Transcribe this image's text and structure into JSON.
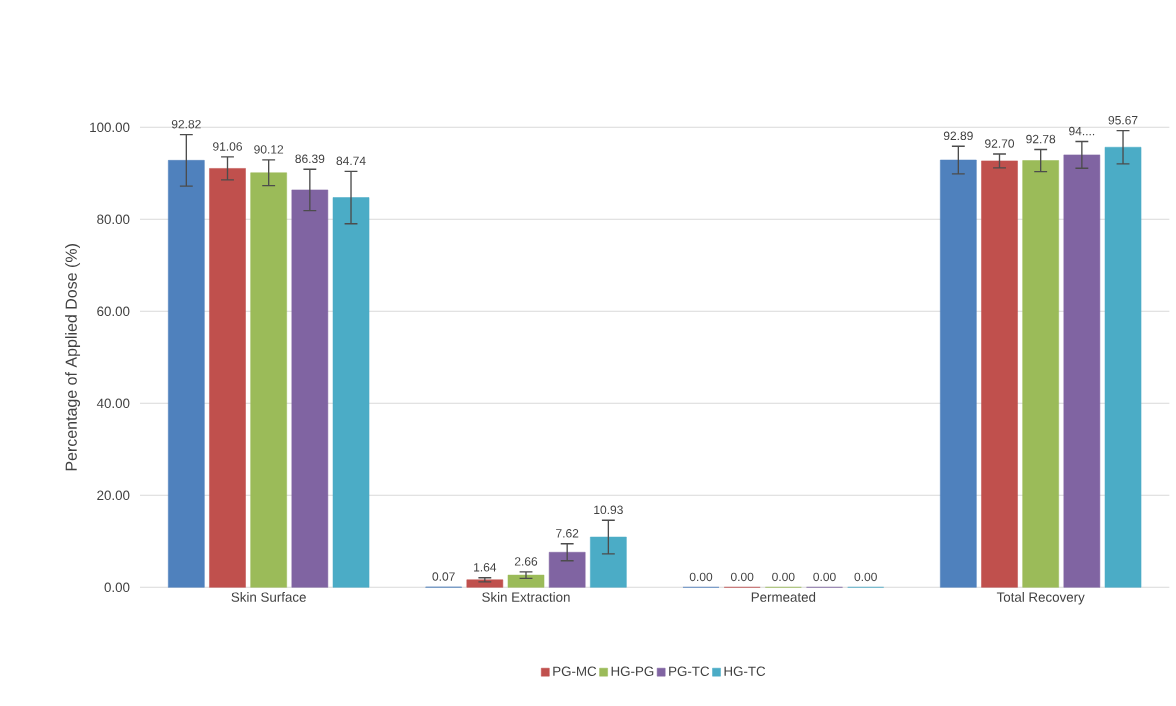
{
  "chart_data": {
    "type": "bar",
    "ylabel": "Percentage of Applied Dose (%)",
    "categories": [
      "Skin Surface",
      "Skin Extraction",
      "Permeated",
      "Total Recovery"
    ],
    "series": [
      {
        "color": "#4f81bd",
        "values": [
          92.82,
          0.07,
          0.0,
          92.89
        ],
        "errors": [
          5.6,
          null,
          null,
          3.0
        ],
        "value_labels": [
          "92.82",
          "0.07",
          "0.00",
          "92.89"
        ]
      },
      {
        "name": "PG-MC",
        "color": "#c0504d",
        "values": [
          91.06,
          1.64,
          0.0,
          92.7
        ],
        "errors": [
          2.5,
          0.45,
          null,
          1.5
        ],
        "value_labels": [
          "91.06",
          "1.64",
          "0.00",
          "92.70"
        ]
      },
      {
        "name": "HG-PG",
        "color": "#9bbb59",
        "values": [
          90.12,
          2.66,
          0.0,
          92.78
        ],
        "errors": [
          2.8,
          0.7,
          null,
          2.4
        ],
        "value_labels": [
          "90.12",
          "2.66",
          "0.00",
          "92.78"
        ]
      },
      {
        "name": "PG-TC",
        "color": "#8064a2",
        "values": [
          86.39,
          7.62,
          0.0,
          94.01
        ],
        "errors": [
          4.5,
          1.85,
          null,
          2.9
        ],
        "value_labels": [
          "86.39",
          "7.62",
          "0.00",
          "94...."
        ]
      },
      {
        "name": "HG-TC",
        "color": "#4bacc6",
        "values": [
          84.74,
          10.93,
          0.0,
          95.67
        ],
        "errors": [
          5.7,
          3.65,
          null,
          3.6
        ],
        "value_labels": [
          "84.74",
          "10.93",
          "0.00",
          "95.67"
        ]
      }
    ],
    "ylim": [
      0,
      100
    ],
    "yticks": [
      {
        "value": 0,
        "label": "0.00"
      },
      {
        "value": 20,
        "label": "20.00"
      },
      {
        "value": 40,
        "label": "40.00"
      },
      {
        "value": 60,
        "label": "60.00"
      },
      {
        "value": 80,
        "label": "80.00"
      },
      {
        "value": 100,
        "label": "100.00"
      }
    ],
    "grid": "y",
    "legend": "bottom"
  }
}
